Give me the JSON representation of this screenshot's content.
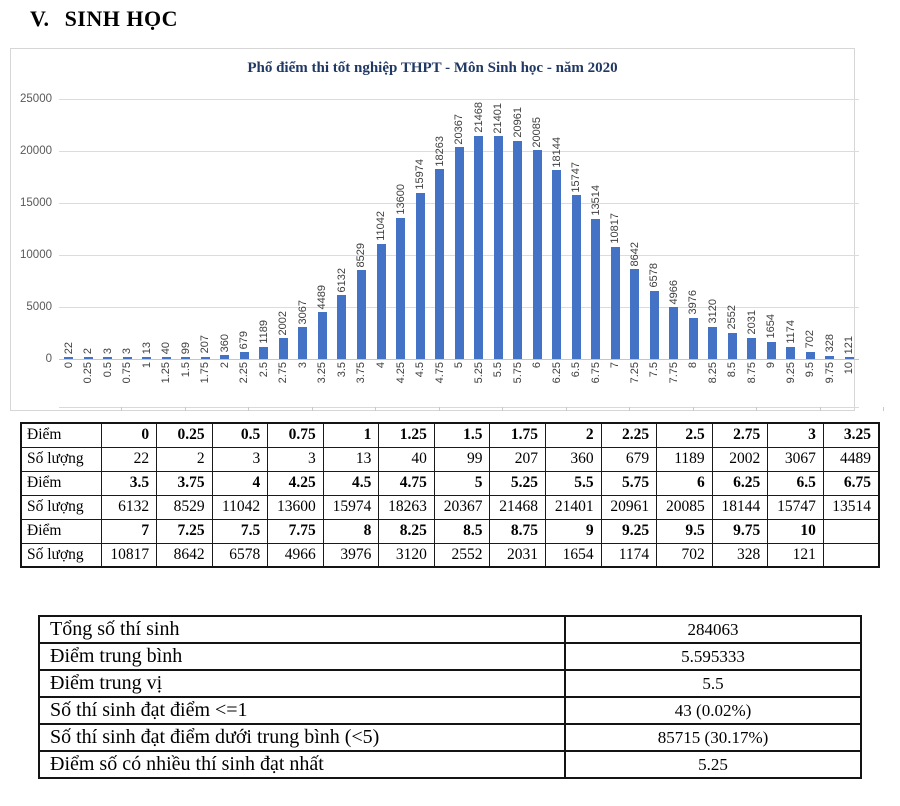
{
  "page": {
    "heading_numeral": "V.",
    "heading_text": "SINH HỌC"
  },
  "chart_data": {
    "type": "bar",
    "title": "Phổ điểm thi tốt nghiệp THPT - Môn Sinh học - năm 2020",
    "xlabel": "",
    "ylabel": "",
    "ylim": [
      0,
      25000
    ],
    "ytick_step": 5000,
    "ytick_labels": [
      "0",
      "5000",
      "10000",
      "15000",
      "20000",
      "25000"
    ],
    "grid": true,
    "legend": "none",
    "bar_color": "#4472C4",
    "title_color": "#1F3864",
    "categories": [
      "0",
      "0.25",
      "0.5",
      "0.75",
      "1",
      "1.25",
      "1.5",
      "1.75",
      "2",
      "2.25",
      "2.5",
      "2.75",
      "3",
      "3.25",
      "3.5",
      "3.75",
      "4",
      "4.25",
      "4.5",
      "4.75",
      "5",
      "5.25",
      "5.5",
      "5.75",
      "6",
      "6.25",
      "6.5",
      "6.75",
      "7",
      "7.25",
      "7.5",
      "7.75",
      "8",
      "8.25",
      "8.5",
      "8.75",
      "9",
      "9.25",
      "9.5",
      "9.75",
      "10"
    ],
    "values": [
      22,
      2,
      3,
      3,
      13,
      40,
      99,
      207,
      360,
      679,
      1189,
      2002,
      3067,
      4489,
      6132,
      8529,
      11042,
      13600,
      15974,
      18263,
      20367,
      21468,
      21401,
      20961,
      20085,
      18144,
      15747,
      13514,
      10817,
      8642,
      6578,
      4966,
      3976,
      3120,
      2552,
      2031,
      1654,
      1174,
      702,
      328,
      121
    ]
  },
  "score_table": {
    "diem_label": "Điểm",
    "so_luong_label": "Số lượng",
    "columns_per_band": 14,
    "bands": 3
  },
  "summary_table": {
    "rows": [
      {
        "label": "Tổng số thí sinh",
        "value": "284063"
      },
      {
        "label": "Điểm trung bình",
        "value": "5.595333"
      },
      {
        "label": "Điểm trung vị",
        "value": "5.5"
      },
      {
        "label": "Số thí sinh đạt điểm <=1",
        "value": "43 (0.02%)"
      },
      {
        "label": "Số thí sinh đạt điểm dưới trung bình (<5)",
        "value": "85715 (30.17%)"
      },
      {
        "label": "Điểm số có nhiều thí sinh đạt nhất",
        "value": "5.25"
      }
    ]
  }
}
